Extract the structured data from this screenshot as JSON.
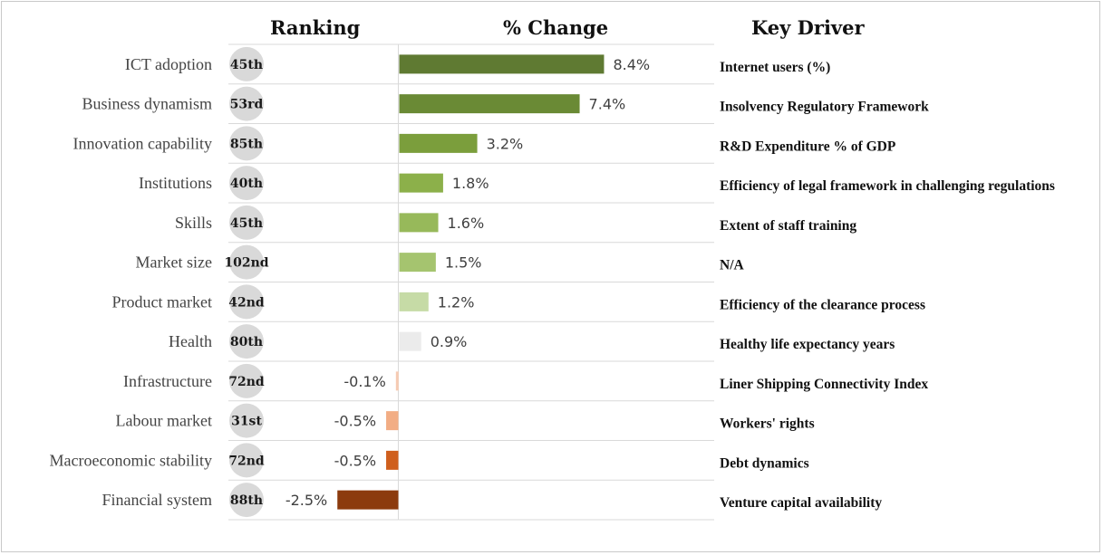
{
  "headers": {
    "ranking": "Ranking",
    "change": "% Change",
    "driver": "Key Driver"
  },
  "colors": {
    "bar_colors": [
      "#5f7a32",
      "#6a8a35",
      "#7b9e3c",
      "#8cb04a",
      "#97b95a",
      "#a5c46f",
      "#c6dba6",
      "#ebebeb",
      "#f6cbb3",
      "#f2ad84",
      "#cf5f1d",
      "#8c3b0e"
    ],
    "rank_circle": "#d9d9d9",
    "gridline": "#d9d9d9"
  },
  "chart_data": {
    "type": "bar",
    "orientation": "horizontal",
    "categories": [
      "ICT adoption",
      "Business dynamism",
      "Innovation capability",
      "Institutions",
      "Skills",
      "Market size",
      "Product market",
      "Health",
      "Infrastructure",
      "Labour market",
      "Macroeconomic  stability",
      "Financial system"
    ],
    "values": [
      8.4,
      7.4,
      3.2,
      1.8,
      1.6,
      1.5,
      1.2,
      0.9,
      -0.1,
      -0.5,
      -0.5,
      -2.5
    ],
    "value_labels": [
      "8.4%",
      "7.4%",
      "3.2%",
      "1.8%",
      "1.6%",
      "1.5%",
      "1.2%",
      "0.9%",
      "-0.1%",
      "-0.5%",
      "-0.5%",
      "-2.5%"
    ],
    "rankings": [
      "45th",
      "53rd",
      "85th",
      "40th",
      "45th",
      "102nd",
      "42nd",
      "80th",
      "72nd",
      "31st",
      "72nd",
      "88th"
    ],
    "key_drivers": [
      "Internet users (%)",
      "Insolvency Regulatory Framework",
      "R&D  Expenditure % of GDP",
      "Efficiency of legal framework in challenging regulations",
      "Extent of staff training",
      "N/A",
      "Efficiency of the clearance process",
      "Healthy life expectancy years",
      "Liner Shipping Connectivity Index",
      "Workers' rights",
      "Debt dynamics",
      "Venture capital availability"
    ],
    "xlim": [
      -2.5,
      8.4
    ],
    "grid": true,
    "legend": "none"
  }
}
